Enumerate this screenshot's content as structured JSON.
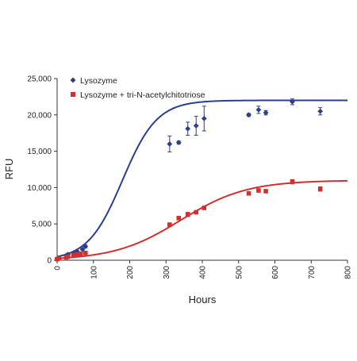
{
  "chart_data": {
    "type": "scatter",
    "xlabel": "Hours",
    "ylabel": "RFU",
    "xlim": [
      0,
      800
    ],
    "ylim": [
      0,
      25000
    ],
    "x_ticks": [
      0,
      100,
      200,
      300,
      400,
      500,
      600,
      700,
      800
    ],
    "x_tick_labels": [
      "0",
      "100",
      "200",
      "300",
      "400",
      "500",
      "600",
      "700",
      "800"
    ],
    "y_ticks": [
      0,
      5000,
      10000,
      15000,
      20000,
      25000
    ],
    "y_tick_labels": [
      "0",
      "5,000",
      "10,000",
      "15,000",
      "20,000",
      "25,000"
    ],
    "grid": false,
    "legend_position": "top-left",
    "series": [
      {
        "name": "Lysozyme",
        "marker": "diamond",
        "color": "#2b3f8f",
        "points": [
          {
            "x": 0,
            "y": 200,
            "err": 0
          },
          {
            "x": 5,
            "y": 300,
            "err": 0
          },
          {
            "x": 25,
            "y": 650,
            "err": 0
          },
          {
            "x": 30,
            "y": 800,
            "err": 150
          },
          {
            "x": 45,
            "y": 1000,
            "err": 150
          },
          {
            "x": 55,
            "y": 1200,
            "err": 150
          },
          {
            "x": 70,
            "y": 1500,
            "err": 150
          },
          {
            "x": 78,
            "y": 1900,
            "err": 200
          },
          {
            "x": 310,
            "y": 16000,
            "err": 1100
          },
          {
            "x": 335,
            "y": 16200,
            "err": 200
          },
          {
            "x": 360,
            "y": 18100,
            "err": 900
          },
          {
            "x": 383,
            "y": 18500,
            "err": 1300
          },
          {
            "x": 405,
            "y": 19500,
            "err": 1700
          },
          {
            "x": 528,
            "y": 20000,
            "err": 200
          },
          {
            "x": 555,
            "y": 20700,
            "err": 500
          },
          {
            "x": 575,
            "y": 20300,
            "err": 300
          },
          {
            "x": 648,
            "y": 21800,
            "err": 400
          },
          {
            "x": 725,
            "y": 20500,
            "err": 500
          }
        ],
        "fit": "logistic"
      },
      {
        "name": "Lysozyme + tri-N-acetylchitotriose",
        "marker": "square",
        "color": "#d32f2f",
        "points": [
          {
            "x": 0,
            "y": 150,
            "err": 0
          },
          {
            "x": 5,
            "y": 250,
            "err": 0
          },
          {
            "x": 25,
            "y": 400,
            "err": 0
          },
          {
            "x": 30,
            "y": 500,
            "err": 0
          },
          {
            "x": 45,
            "y": 700,
            "err": 100
          },
          {
            "x": 55,
            "y": 800,
            "err": 100
          },
          {
            "x": 65,
            "y": 900,
            "err": 100
          },
          {
            "x": 78,
            "y": 1000,
            "err": 100
          },
          {
            "x": 310,
            "y": 4900,
            "err": 200
          },
          {
            "x": 335,
            "y": 5800,
            "err": 200
          },
          {
            "x": 360,
            "y": 6300,
            "err": 300
          },
          {
            "x": 383,
            "y": 6600,
            "err": 150
          },
          {
            "x": 405,
            "y": 7200,
            "err": 200
          },
          {
            "x": 528,
            "y": 9200,
            "err": 150
          },
          {
            "x": 555,
            "y": 9600,
            "err": 150
          },
          {
            "x": 575,
            "y": 9500,
            "err": 150
          },
          {
            "x": 648,
            "y": 10800,
            "err": 300
          },
          {
            "x": 725,
            "y": 9800,
            "err": 300
          }
        ],
        "fit": "logistic"
      }
    ]
  }
}
